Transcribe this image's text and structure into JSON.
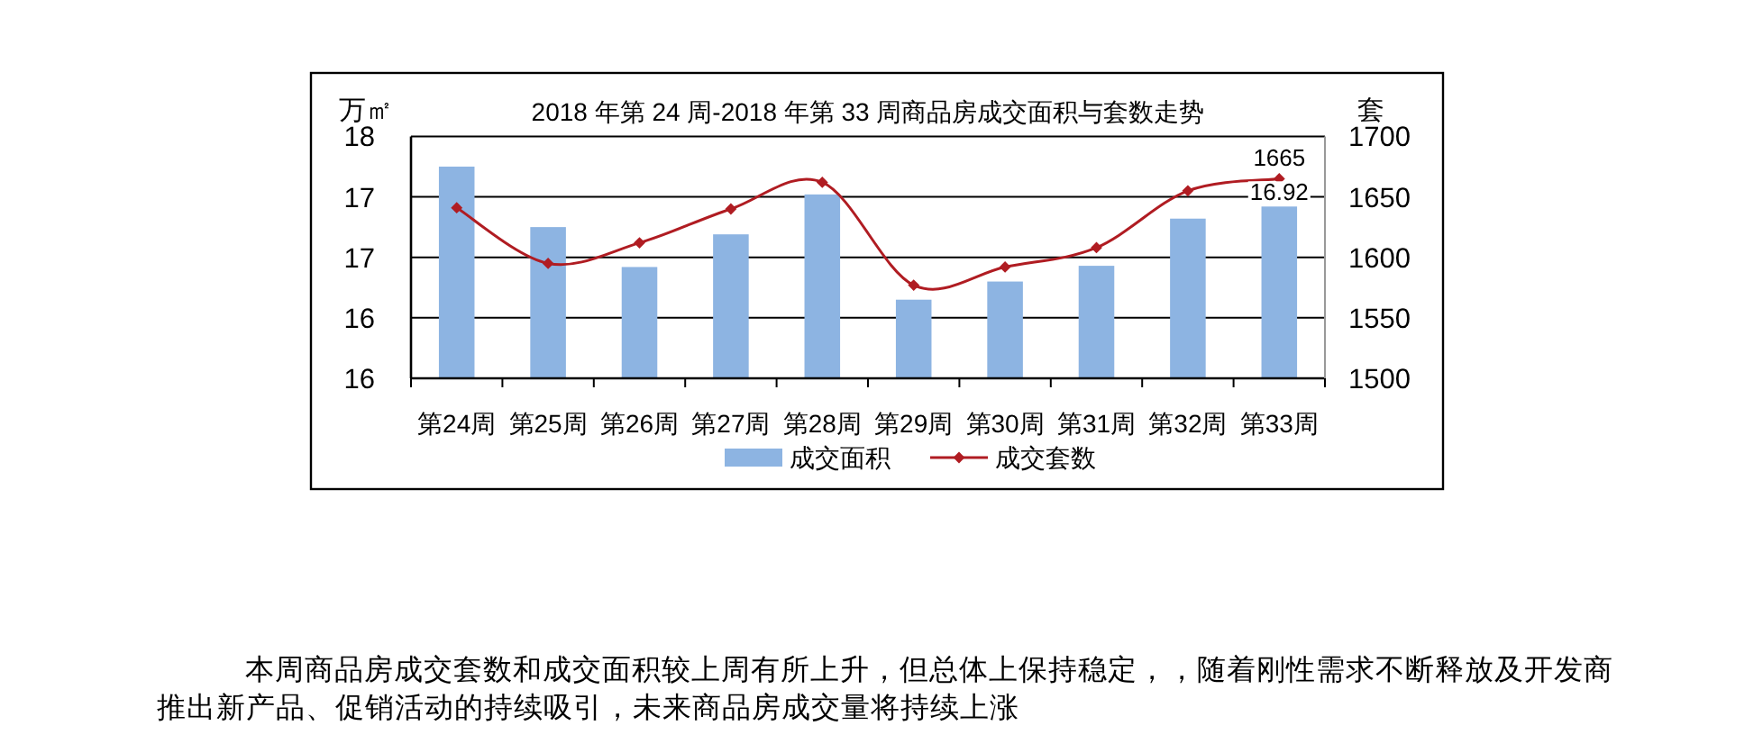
{
  "chart_data": {
    "type": "bar",
    "title": "2018 年第 24 周-2018 年第 33 周商品房成交面积与套数走势",
    "ylabel": "万㎡",
    "y2label": "套",
    "categories": [
      "第24周",
      "第25周",
      "第26周",
      "第27周",
      "第28周",
      "第29周",
      "第30周",
      "第31周",
      "第32周",
      "第33周"
    ],
    "series": [
      {
        "name": "成交面积",
        "color": "#8db4e2",
        "values": [
          17.25,
          16.75,
          16.42,
          16.69,
          17.02,
          16.15,
          16.3,
          16.43,
          16.82,
          16.92
        ],
        "value_labels": [
          null,
          null,
          null,
          null,
          null,
          null,
          null,
          null,
          null,
          "16.92"
        ]
      },
      {
        "name": "成交套数",
        "type": "line",
        "axis": "y2",
        "color": "#b01c22",
        "values": [
          1641,
          1595,
          1612,
          1640,
          1662,
          1577,
          1592,
          1608,
          1655,
          1665
        ],
        "value_labels": [
          null,
          null,
          null,
          null,
          null,
          null,
          null,
          null,
          null,
          "1665"
        ]
      }
    ],
    "ylim": [
      15.5,
      17.5
    ],
    "yticks": [
      {
        "value": 15.5,
        "label": "16"
      },
      {
        "value": 16,
        "label": "16"
      },
      {
        "value": 16.5,
        "label": "17"
      },
      {
        "value": 17,
        "label": "17"
      },
      {
        "value": 17.5,
        "label": "18"
      }
    ],
    "y2lim": [
      1500,
      1700
    ],
    "y2ticks": [
      1500,
      1550,
      1600,
      1650,
      1700
    ],
    "grid": "y",
    "legend": "bottom",
    "marker": "diamond",
    "annotations": [
      "本周商品房成交套数和成交面积较上周有所上升，但总体上保持稳定，，随着刚性需求不断释放及开发商推出新产品、促销活动的持续吸引，未来商品房成交量将持续上涨"
    ]
  }
}
